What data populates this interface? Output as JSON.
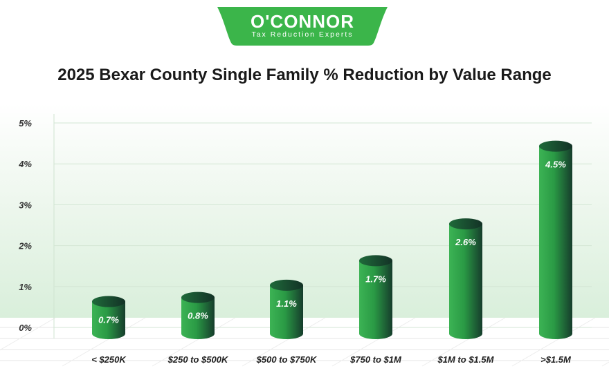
{
  "logo": {
    "name": "O'CONNOR",
    "tagline": "Tax Reduction Experts",
    "color": "#3bb54a"
  },
  "chart_data": {
    "type": "bar",
    "title": "2025 Bexar County Single Family % Reduction by Value Range",
    "categories": [
      "< $250K",
      "$250 to $500K",
      "$500 to $750K",
      "$750 to $1M",
      "$1M to $1.5M",
      ">$1.5M"
    ],
    "values": [
      0.7,
      0.8,
      1.1,
      1.7,
      2.6,
      4.5
    ],
    "data_labels": [
      "0.7%",
      "0.8%",
      "1.1%",
      "1.7%",
      "2.6%",
      "4.5%"
    ],
    "yticks": [
      "0%",
      "1%",
      "2%",
      "3%",
      "4%",
      "5%"
    ],
    "ylim": [
      0,
      5
    ],
    "xlabel": "",
    "ylabel": "",
    "grid": true,
    "bar_color": "#2e9e45"
  }
}
